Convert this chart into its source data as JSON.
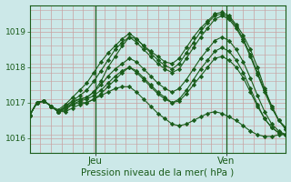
{
  "title": "",
  "xlabel": "Pression niveau de la mer( hPa )",
  "bg_color": "#cce8e8",
  "line_color": "#1a5c1a",
  "marker_color": "#1a5c1a",
  "ylim": [
    1015.6,
    1019.75
  ],
  "xlim": [
    0,
    47
  ],
  "yticks": [
    1016,
    1017,
    1018,
    1019
  ],
  "ytick_fontsize": 6.5,
  "xtick_positions": [
    12,
    36
  ],
  "xtick_labels": [
    "Jeu",
    "Ven"
  ],
  "vline_positions": [
    12,
    36
  ],
  "grid_color_v": "#c8a0a0",
  "grid_color_h": "#c8a0a0",
  "n_xgrid": 24,
  "series": [
    [
      1016.65,
      1017.0,
      1017.05,
      1016.9,
      1016.75,
      1016.9,
      1017.05,
      1017.1,
      1017.15,
      1017.3,
      1017.6,
      1018.0,
      1018.3,
      1018.6,
      1018.85,
      1018.8,
      1018.6,
      1018.45,
      1018.3,
      1018.15,
      1018.1,
      1018.25,
      1018.55,
      1018.85,
      1019.1,
      1019.3,
      1019.5,
      1019.55,
      1019.45,
      1019.2,
      1018.9,
      1018.5,
      1018.0,
      1017.4,
      1016.9,
      1016.5,
      1016.3
    ],
    [
      1016.65,
      1017.0,
      1017.05,
      1016.9,
      1016.75,
      1016.85,
      1016.95,
      1017.0,
      1017.0,
      1017.1,
      1017.25,
      1017.45,
      1017.65,
      1017.85,
      1018.0,
      1017.9,
      1017.7,
      1017.5,
      1017.3,
      1017.15,
      1017.0,
      1017.05,
      1017.25,
      1017.5,
      1017.75,
      1018.0,
      1018.25,
      1018.3,
      1018.2,
      1018.0,
      1017.7,
      1017.3,
      1016.9,
      1016.55,
      1016.3,
      1016.15,
      1016.1
    ],
    [
      1016.65,
      1017.0,
      1017.05,
      1016.9,
      1016.75,
      1016.85,
      1017.0,
      1017.1,
      1017.15,
      1017.3,
      1017.5,
      1017.75,
      1017.95,
      1018.1,
      1018.25,
      1018.15,
      1017.95,
      1017.75,
      1017.55,
      1017.4,
      1017.3,
      1017.4,
      1017.65,
      1017.95,
      1018.25,
      1018.5,
      1018.75,
      1018.85,
      1018.75,
      1018.5,
      1018.15,
      1017.7,
      1017.2,
      1016.75,
      1016.4,
      1016.2,
      1016.1
    ],
    [
      1016.65,
      1017.0,
      1017.05,
      1016.9,
      1016.75,
      1016.9,
      1017.05,
      1017.2,
      1017.35,
      1017.6,
      1017.9,
      1018.2,
      1018.5,
      1018.7,
      1018.85,
      1018.7,
      1018.5,
      1018.3,
      1018.1,
      1017.95,
      1017.85,
      1017.95,
      1018.25,
      1018.55,
      1018.85,
      1019.1,
      1019.35,
      1019.45,
      1019.35,
      1019.1,
      1018.75,
      1018.3,
      1017.8,
      1017.3,
      1016.85,
      1016.5,
      1016.25
    ],
    [
      1016.65,
      1017.0,
      1017.05,
      1016.9,
      1016.75,
      1016.75,
      1016.85,
      1016.95,
      1017.0,
      1017.1,
      1017.2,
      1017.3,
      1017.4,
      1017.45,
      1017.45,
      1017.3,
      1017.1,
      1016.9,
      1016.7,
      1016.55,
      1016.4,
      1016.35,
      1016.4,
      1016.5,
      1016.6,
      1016.7,
      1016.75,
      1016.7,
      1016.6,
      1016.5,
      1016.35,
      1016.2,
      1016.1,
      1016.05,
      1016.05,
      1016.1,
      1016.1
    ],
    [
      1016.65,
      1017.0,
      1017.05,
      1016.9,
      1016.8,
      1016.95,
      1017.15,
      1017.35,
      1017.55,
      1017.85,
      1018.15,
      1018.4,
      1018.6,
      1018.8,
      1018.95,
      1018.8,
      1018.6,
      1018.4,
      1018.2,
      1018.05,
      1017.95,
      1018.1,
      1018.4,
      1018.7,
      1019.0,
      1019.25,
      1019.45,
      1019.5,
      1019.4,
      1019.15,
      1018.8,
      1018.35,
      1017.85,
      1017.35,
      1016.9,
      1016.5,
      1016.25
    ],
    [
      1016.65,
      1017.0,
      1017.05,
      1016.9,
      1016.75,
      1016.8,
      1016.95,
      1017.05,
      1017.1,
      1017.2,
      1017.35,
      1017.55,
      1017.75,
      1017.9,
      1018.0,
      1017.85,
      1017.65,
      1017.45,
      1017.25,
      1017.1,
      1017.0,
      1017.1,
      1017.35,
      1017.65,
      1017.95,
      1018.2,
      1018.45,
      1018.55,
      1018.45,
      1018.2,
      1017.85,
      1017.4,
      1016.95,
      1016.55,
      1016.3,
      1016.15,
      1016.1
    ]
  ]
}
